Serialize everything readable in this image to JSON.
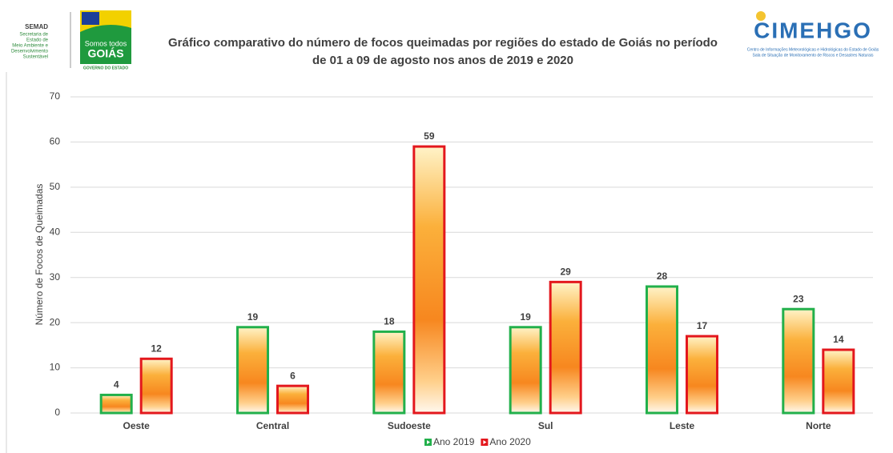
{
  "header": {
    "semad": "SEMAD",
    "semad_lines": [
      "Secretaria de",
      "Estado de",
      "Meio Ambiente e",
      "Desenvolvimento",
      "Sustentável"
    ],
    "goias_small": "Somos todos",
    "goias": "GOIÁS",
    "governo": "GOVERNO DO ESTADO",
    "cimehgo": "CIMEHGO",
    "cimehgo_lines": [
      "Centro de Informações Meteorológicas e Hidrológicas do Estado de Goiás",
      "Sala de Situação de Monitoramento de Riscos e Desastres Naturais"
    ]
  },
  "chart_data": {
    "type": "bar",
    "title": [
      "Gráfico comparativo do número de focos queimadas por regiões do estado de Goiás no período",
      "de 01 a 09 de agosto nos anos de 2019 e 2020"
    ],
    "y_label": "Número de Focos de Queimadas",
    "categories": [
      "Oeste",
      "Central",
      "Sudoeste",
      "Sul",
      "Leste",
      "Norte"
    ],
    "series": [
      {
        "name": "Ano 2019",
        "color": "#22b04b",
        "values": [
          4,
          19,
          18,
          19,
          28,
          23
        ]
      },
      {
        "name": "Ano 2020",
        "color": "#e3171d",
        "values": [
          12,
          6,
          59,
          29,
          17,
          14
        ]
      }
    ],
    "ylim": [
      0,
      70
    ],
    "yticks": [
      0,
      10,
      20,
      30,
      40,
      50,
      60,
      70
    ],
    "grid": true,
    "legend": "bottom"
  }
}
